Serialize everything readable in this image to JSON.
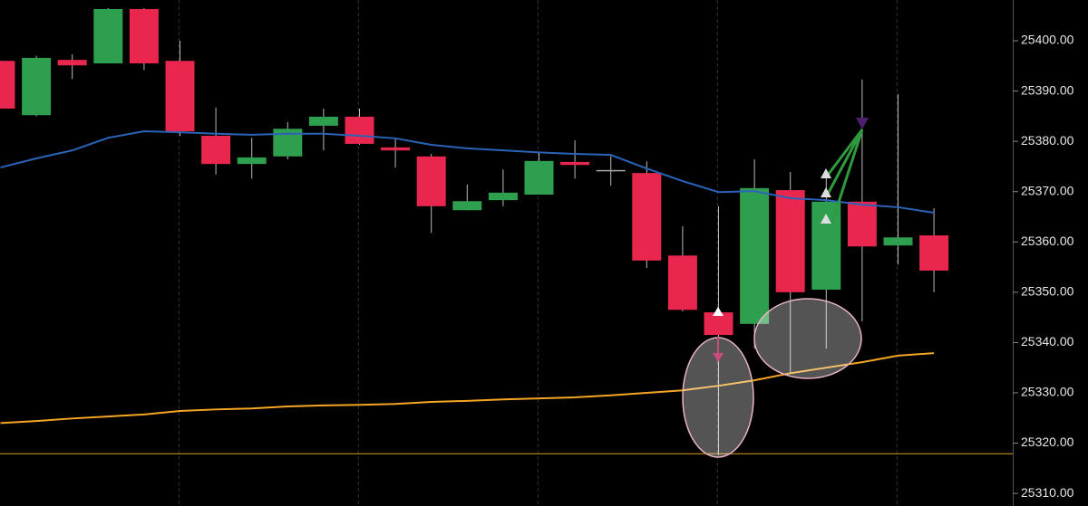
{
  "chart_data": {
    "type": "candlestick",
    "up_color": "#2e9e4f",
    "down_color": "#e8264e",
    "doji_color": "#aaaaaa",
    "open": [
      25396.0,
      25385.2,
      25396.2,
      25395.5,
      25406.3,
      25396.0,
      25381.1,
      25375.5,
      25377.0,
      25383.1,
      25384.9,
      25378.8,
      25377.0,
      25366.3,
      25368.3,
      25369.4,
      25375.9,
      25374.3,
      25373.7,
      25357.3,
      25346.0,
      25343.7,
      25370.3,
      25350.5,
      25368.0,
      25359.3,
      25361.3
    ],
    "high": [
      25396.0,
      25397.0,
      25397.3,
      25406.5,
      25406.5,
      25400.0,
      25386.7,
      25380.7,
      25383.8,
      25386.5,
      25386.5,
      25380.7,
      25377.5,
      25371.4,
      25374.4,
      25377.9,
      25380.2,
      25377.1,
      25376.0,
      25363.1,
      25367.1,
      25376.4,
      25373.9,
      25373.9,
      25392.3,
      25389.4,
      25366.7
    ],
    "low": [
      25386.5,
      25385.0,
      25392.4,
      25395.5,
      25394.2,
      25381.1,
      25373.4,
      25372.6,
      25376.4,
      25378.2,
      25379.3,
      25374.8,
      25361.8,
      25366.3,
      25367.1,
      25369.4,
      25372.6,
      25371.2,
      25354.8,
      25346.2,
      25317.6,
      25338.8,
      25333.9,
      25338.8,
      25344.2,
      25355.5,
      25350.0
    ],
    "close": [
      25386.5,
      25396.6,
      25395.1,
      25406.3,
      25395.5,
      25382.0,
      25375.5,
      25376.8,
      25382.5,
      25384.9,
      25379.5,
      25378.2,
      25367.1,
      25368.1,
      25369.8,
      25376.1,
      25375.3,
      25374.3,
      25356.3,
      25346.5,
      25341.5,
      25370.7,
      25350.0,
      25368.0,
      25359.1,
      25360.9,
      25354.3
    ],
    "lines": [
      {
        "color": "#2a63b8",
        "values": [
          25374.8,
          25376.6,
          25378.2,
          25380.7,
          25382.0,
          25381.8,
          25381.5,
          25381.3,
          25381.5,
          25381.5,
          25381.1,
          25380.6,
          25379.3,
          25378.6,
          25378.2,
          25377.8,
          25377.5,
          25377.3,
          25374.6,
          25372.1,
          25369.9,
          25370.1,
          25368.7,
          25368.3,
          25367.4,
          25366.9,
          25365.8
        ]
      },
      {
        "color": "#f5a623",
        "values": [
          25324.0,
          25324.4,
          25324.9,
          25325.3,
          25325.7,
          25326.4,
          25326.7,
          25326.9,
          25327.3,
          25327.5,
          25327.6,
          25327.8,
          25328.2,
          25328.4,
          25328.7,
          25328.9,
          25329.1,
          25329.5,
          25330.0,
          25330.5,
          25331.4,
          25332.5,
          25333.9,
          25335.0,
          25336.1,
          25337.4,
          25337.9
        ]
      }
    ],
    "level": 25317.9,
    "level_color": "#e0a020",
    "ylim": [
      25307.5,
      25408.1
    ],
    "yticks": [
      {
        "value": 25310,
        "label": "25310.00"
      },
      {
        "value": 25320,
        "label": "25320.00"
      },
      {
        "value": 25330,
        "label": "25330.00"
      },
      {
        "value": 25340,
        "label": "25340.00"
      },
      {
        "value": 25350,
        "label": "25350.00"
      },
      {
        "value": 25360,
        "label": "25360.00"
      },
      {
        "value": 25370,
        "label": "25370.00"
      },
      {
        "value": 25380,
        "label": "25380.00"
      },
      {
        "value": 25390,
        "label": "25390.00"
      },
      {
        "value": 25400,
        "label": "25400.00"
      }
    ]
  }
}
